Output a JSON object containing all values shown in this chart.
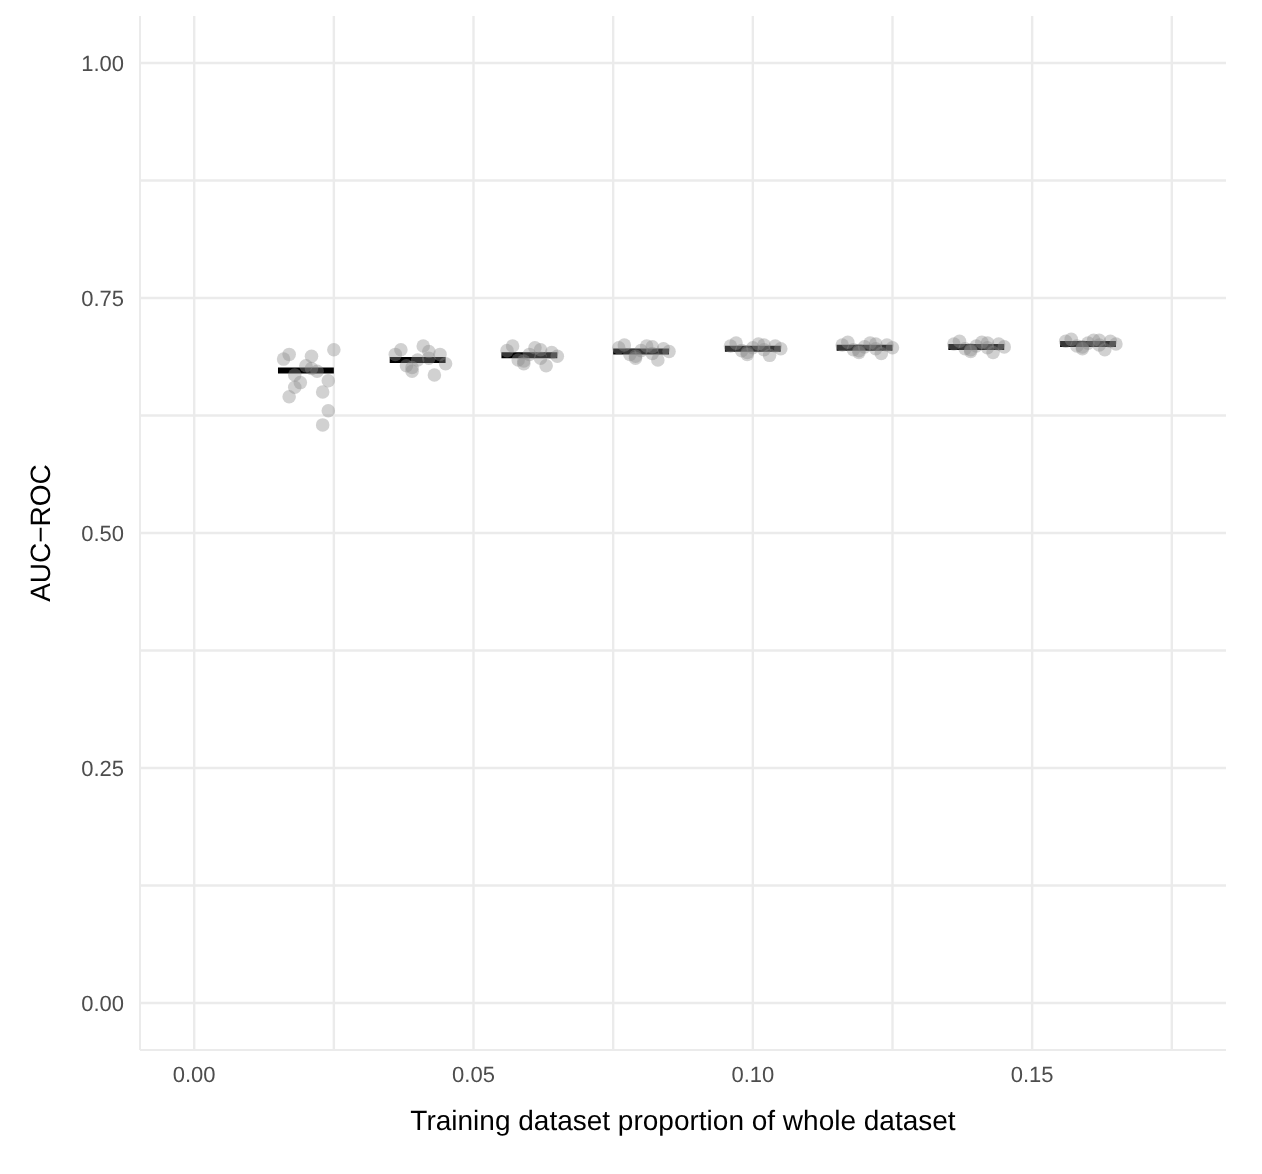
{
  "chart_data": {
    "type": "scatter",
    "xlabel": "Training dataset proportion of whole dataset",
    "ylabel": "AUC−ROC",
    "xlim": [
      -0.0097,
      0.1847
    ],
    "ylim": [
      -0.05,
      1.05
    ],
    "xticks": [
      {
        "value": 0,
        "label": "0.00"
      },
      {
        "value": 0.025,
        "label": null
      },
      {
        "value": 0.05,
        "label": "0.05"
      },
      {
        "value": 0.075,
        "label": null
      },
      {
        "value": 0.1,
        "label": "0.10"
      },
      {
        "value": 0.125,
        "label": null
      },
      {
        "value": 0.15,
        "label": "0.15"
      },
      {
        "value": 0.175,
        "label": null
      }
    ],
    "yticks": [
      {
        "value": 0,
        "label": "0.00"
      },
      {
        "value": 0.125,
        "label": null
      },
      {
        "value": 0.25,
        "label": "0.25"
      },
      {
        "value": 0.375,
        "label": null
      },
      {
        "value": 0.5,
        "label": "0.50"
      },
      {
        "value": 0.625,
        "label": null
      },
      {
        "value": 0.75,
        "label": "0.75"
      },
      {
        "value": 0.875,
        "label": null
      },
      {
        "value": 1,
        "label": "1.00"
      }
    ],
    "grid": true,
    "series": [
      {
        "marker": "circle",
        "color": "#8c8c8c",
        "x": [
          0.016,
          0.017,
          0.018,
          0.019,
          0.02,
          0.021,
          0.022,
          0.023,
          0.024,
          0.025,
          0.018,
          0.023,
          0.021,
          0.024,
          0.017,
          0.036,
          0.037,
          0.038,
          0.039,
          0.04,
          0.041,
          0.042,
          0.043,
          0.044,
          0.045,
          0.039,
          0.042,
          0.056,
          0.057,
          0.058,
          0.059,
          0.06,
          0.061,
          0.062,
          0.063,
          0.064,
          0.065,
          0.059,
          0.062,
          0.076,
          0.077,
          0.078,
          0.079,
          0.08,
          0.081,
          0.082,
          0.083,
          0.084,
          0.085,
          0.079,
          0.082,
          0.096,
          0.097,
          0.098,
          0.099,
          0.1,
          0.101,
          0.102,
          0.103,
          0.104,
          0.105,
          0.099,
          0.102,
          0.116,
          0.117,
          0.118,
          0.119,
          0.12,
          0.121,
          0.122,
          0.123,
          0.124,
          0.125,
          0.119,
          0.122,
          0.136,
          0.137,
          0.138,
          0.139,
          0.14,
          0.141,
          0.142,
          0.143,
          0.144,
          0.145,
          0.139,
          0.142,
          0.156,
          0.157,
          0.158,
          0.159,
          0.16,
          0.161,
          0.162,
          0.163,
          0.164,
          0.165,
          0.159,
          0.162
        ],
        "values": [
          0.685,
          0.69,
          0.668,
          0.66,
          0.678,
          0.688,
          0.672,
          0.65,
          0.63,
          0.695,
          0.655,
          0.615,
          0.675,
          0.662,
          0.645,
          0.69,
          0.695,
          0.678,
          0.672,
          0.684,
          0.699,
          0.686,
          0.668,
          0.69,
          0.68,
          0.676,
          0.693,
          0.694,
          0.699,
          0.684,
          0.68,
          0.69,
          0.697,
          0.686,
          0.678,
          0.692,
          0.688,
          0.683,
          0.695,
          0.697,
          0.7,
          0.69,
          0.686,
          0.694,
          0.699,
          0.691,
          0.684,
          0.696,
          0.693,
          0.688,
          0.698,
          0.699,
          0.702,
          0.694,
          0.69,
          0.697,
          0.701,
          0.695,
          0.689,
          0.699,
          0.696,
          0.692,
          0.7,
          0.7,
          0.703,
          0.695,
          0.692,
          0.698,
          0.702,
          0.696,
          0.691,
          0.7,
          0.697,
          0.694,
          0.701,
          0.701,
          0.704,
          0.696,
          0.693,
          0.699,
          0.703,
          0.697,
          0.692,
          0.701,
          0.698,
          0.695,
          0.702,
          0.704,
          0.706,
          0.699,
          0.696,
          0.702,
          0.705,
          0.7,
          0.695,
          0.704,
          0.701,
          0.698,
          0.705
        ]
      },
      {
        "type": "line",
        "color": "#000000",
        "x": [
          0.015,
          0.025
        ],
        "values": [
          0.673,
          0.673
        ]
      },
      {
        "type": "line",
        "color": "#000000",
        "x": [
          0.035,
          0.045
        ],
        "values": [
          0.684,
          0.684
        ]
      },
      {
        "type": "line",
        "color": "#000000",
        "x": [
          0.055,
          0.065
        ],
        "values": [
          0.689,
          0.689
        ]
      },
      {
        "type": "line",
        "color": "#000000",
        "x": [
          0.075,
          0.085
        ],
        "values": [
          0.693,
          0.693
        ]
      },
      {
        "type": "line",
        "color": "#000000",
        "x": [
          0.095,
          0.105
        ],
        "values": [
          0.696,
          0.696
        ]
      },
      {
        "type": "line",
        "color": "#000000",
        "x": [
          0.115,
          0.125
        ],
        "values": [
          0.697,
          0.697
        ]
      },
      {
        "type": "line",
        "color": "#000000",
        "x": [
          0.135,
          0.145
        ],
        "values": [
          0.698,
          0.698
        ]
      },
      {
        "type": "line",
        "color": "#000000",
        "x": [
          0.155,
          0.165
        ],
        "values": [
          0.701,
          0.701
        ]
      }
    ]
  }
}
